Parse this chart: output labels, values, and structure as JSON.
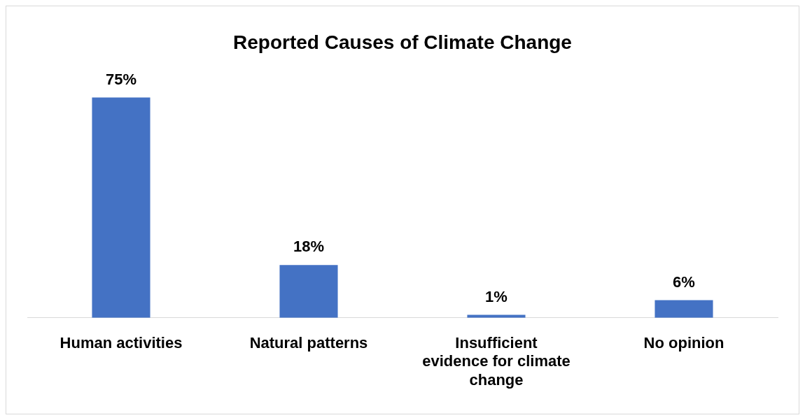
{
  "chart_data": {
    "type": "bar",
    "title": "Reported Causes of Climate Change",
    "categories": [
      "Human activities",
      "Natural patterns",
      "Insufficient evidence for climate change",
      "No opinion"
    ],
    "values": [
      75,
      18,
      1,
      6
    ],
    "value_labels": [
      "75%",
      "18%",
      "1%",
      "6%"
    ],
    "color": "#4472c4",
    "grid": false,
    "legend": false
  }
}
